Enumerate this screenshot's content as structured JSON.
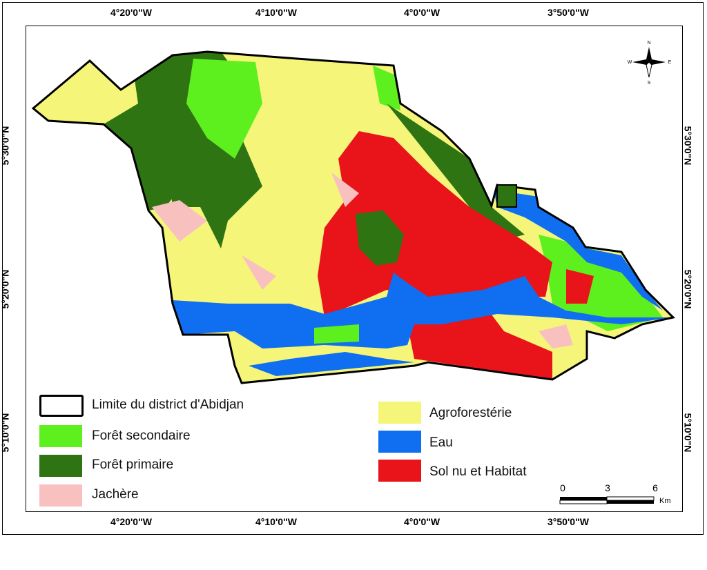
{
  "graticule": {
    "top": [
      "4°20'0\"W",
      "4°10'0\"W",
      "4°0'0\"W",
      "3°50'0\"W"
    ],
    "bottom": [
      "4°20'0\"W",
      "4°10'0\"W",
      "4°0'0\"W",
      "3°50'0\"W"
    ],
    "left": [
      "5°30'0\"N",
      "5°20'0\"N",
      "5°10'0\"N"
    ],
    "right": [
      "5°30'0\"N",
      "5°20'0\"N",
      "5°10'0\"N"
    ]
  },
  "legend": [
    {
      "label": "Limite du district d'Abidjan",
      "color": "#ffffff"
    },
    {
      "label": "Forêt secondaire",
      "color": "#5ef01e"
    },
    {
      "label": "Forêt primaire",
      "color": "#2e7412"
    },
    {
      "label": "Jachère",
      "color": "#f9c0c0"
    },
    {
      "label": "Agroforestérie",
      "color": "#f5f57a"
    },
    {
      "label": "Eau",
      "color": "#0f6ff0"
    },
    {
      "label": "Sol nu et Habitat",
      "color": "#e8141a"
    }
  ],
  "scale_bar": {
    "labels": [
      "0",
      "3",
      "6"
    ],
    "unit": "Km"
  },
  "north_arrow": {
    "n": "N",
    "s": "S",
    "e": "E",
    "w": "W"
  }
}
